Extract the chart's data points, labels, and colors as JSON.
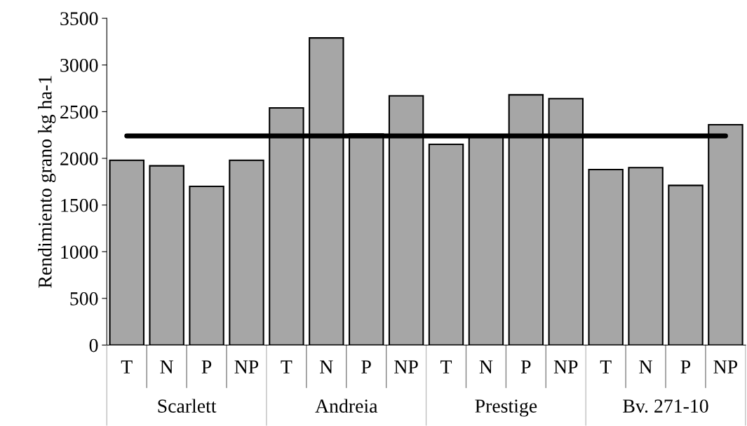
{
  "chart_data": {
    "type": "bar",
    "ylabel": "Rendimiento grano kg ha-1",
    "categories": [
      "T",
      "N",
      "P",
      "NP",
      "T",
      "N",
      "P",
      "NP",
      "T",
      "N",
      "P",
      "NP",
      "T",
      "N",
      "P",
      "NP"
    ],
    "values": [
      1980,
      1920,
      1700,
      1980,
      2540,
      3290,
      2260,
      2670,
      2150,
      2230,
      2680,
      2640,
      1880,
      1900,
      1710,
      2360
    ],
    "color": "#a6a6a6",
    "ylim": [
      0,
      3500
    ],
    "yticks": [
      0,
      500,
      1000,
      1500,
      2000,
      2500,
      3000,
      3500
    ],
    "ref_lines": [
      {
        "axis": "y",
        "value": 2240,
        "color": "#000000",
        "line_style": "solid"
      }
    ],
    "annotations": [
      "Scarlett",
      "Andreia",
      "Prestige",
      "Bv. 271-10"
    ],
    "grid": false,
    "legend": false
  }
}
